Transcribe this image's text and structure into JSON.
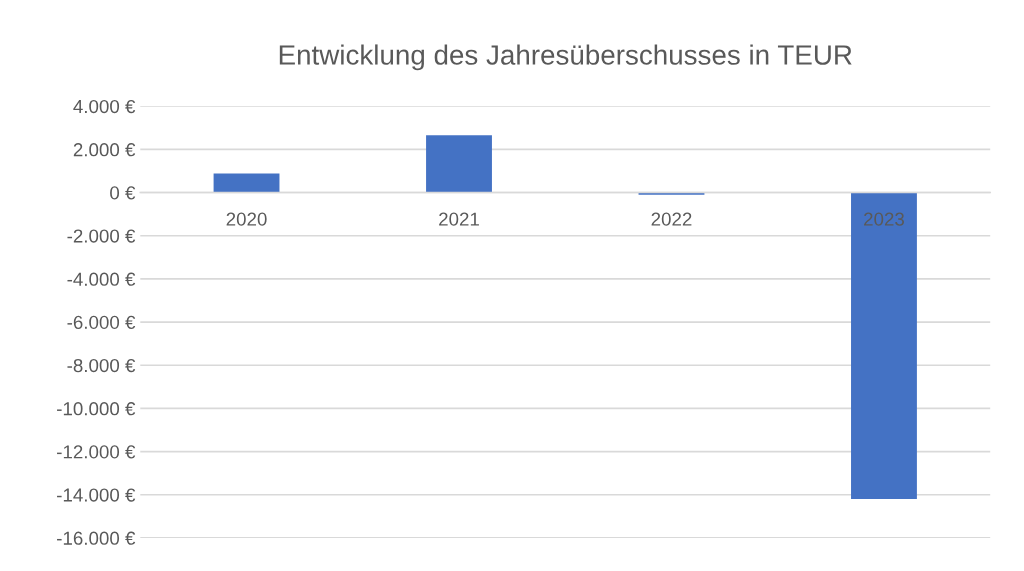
{
  "chart_data": {
    "type": "bar",
    "title": "Entwicklung des Jahresüberschusses in TEUR",
    "categories": [
      "2020",
      "2021",
      "2022",
      "2023"
    ],
    "values": [
      880,
      2660,
      -100,
      -14200
    ],
    "color": "#4472c4",
    "ylim": [
      -16000,
      4000
    ],
    "yticks": [
      {
        "value": -16000,
        "label": "-16.000 €"
      },
      {
        "value": -14000,
        "label": "-14.000 €"
      },
      {
        "value": -12000,
        "label": "-12.000 €"
      },
      {
        "value": -10000,
        "label": "-10.000 €"
      },
      {
        "value": -8000,
        "label": "-8.000 €"
      },
      {
        "value": -6000,
        "label": "-6.000 €"
      },
      {
        "value": -4000,
        "label": "-4.000 €"
      },
      {
        "value": -2000,
        "label": "-2.000 €"
      },
      {
        "value": 0,
        "label": "0 €"
      },
      {
        "value": 2000,
        "label": "2.000 €"
      },
      {
        "value": 4000,
        "label": "4.000 €"
      }
    ],
    "grid": "y"
  }
}
